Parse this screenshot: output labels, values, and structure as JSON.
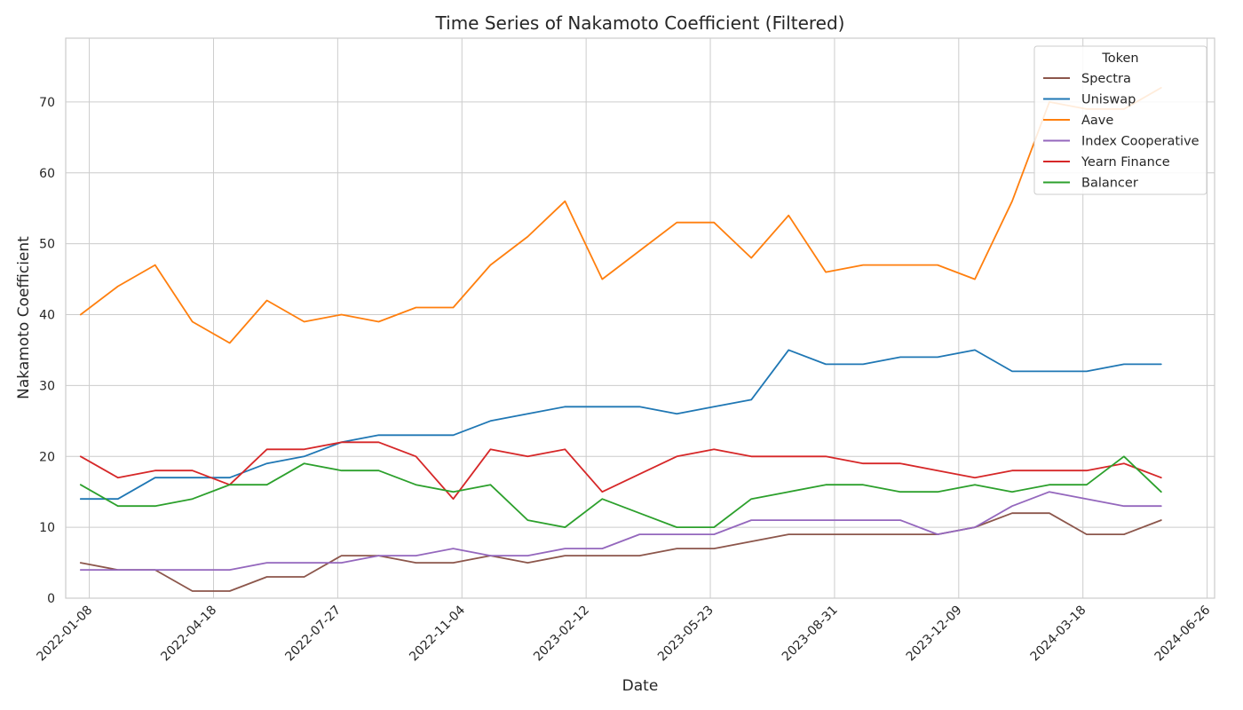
{
  "chart_data": {
    "type": "line",
    "title": "Time Series of Nakamoto Coefficient (Filtered)",
    "xlabel": "Date",
    "ylabel": "Nakamoto Coefficient",
    "ylim": [
      0,
      79
    ],
    "y_ticks": [
      0,
      10,
      20,
      30,
      40,
      50,
      60,
      70
    ],
    "x_ticks": [
      "2022-01-08",
      "2022-04-18",
      "2022-07-27",
      "2022-11-04",
      "2023-02-12",
      "2023-05-23",
      "2023-08-31",
      "2023-12-09",
      "2024-03-18",
      "2024-06-26"
    ],
    "xlim": [
      "2021-12-20",
      "2024-07-02"
    ],
    "grid": true,
    "legend": {
      "title": "Token",
      "placement": "top-right"
    },
    "x": [
      "2022-01-01",
      "2022-01-31",
      "2022-03-02",
      "2022-04-01",
      "2022-05-01",
      "2022-05-31",
      "2022-06-30",
      "2022-07-30",
      "2022-08-29",
      "2022-09-28",
      "2022-10-28",
      "2022-11-27",
      "2022-12-27",
      "2023-01-26",
      "2023-02-25",
      "2023-03-27",
      "2023-04-26",
      "2023-05-26",
      "2023-06-25",
      "2023-07-25",
      "2023-08-24",
      "2023-09-23",
      "2023-10-23",
      "2023-11-22",
      "2023-12-22",
      "2024-01-21",
      "2024-02-20",
      "2024-03-21",
      "2024-04-20",
      "2024-05-20"
    ],
    "series": [
      {
        "name": "Spectra",
        "color": "#8c564b",
        "values": [
          5,
          4,
          4,
          1,
          1,
          3,
          3,
          6,
          6,
          5,
          5,
          6,
          5,
          6,
          6,
          6,
          7,
          7,
          8,
          9,
          9,
          9,
          9,
          9,
          10,
          12,
          12,
          9,
          9,
          11
        ]
      },
      {
        "name": "Uniswap",
        "color": "#1f77b4",
        "values": [
          14,
          14,
          17,
          17,
          17,
          19,
          20,
          22,
          23,
          23,
          23,
          25,
          26,
          27,
          27,
          27,
          26,
          27,
          28,
          35,
          33,
          33,
          34,
          34,
          35,
          32,
          32,
          32,
          33,
          33
        ]
      },
      {
        "name": "Aave",
        "color": "#ff7f0e",
        "values": [
          40,
          44,
          47,
          39,
          36,
          42,
          39,
          40,
          39,
          41,
          41,
          47,
          51,
          56,
          45,
          49,
          53,
          53,
          48,
          54,
          46,
          47,
          47,
          47,
          45,
          56,
          70,
          69,
          69,
          72
        ]
      },
      {
        "name": "Index Cooperative",
        "color": "#9467bd",
        "values": [
          4,
          4,
          4,
          4,
          4,
          5,
          5,
          5,
          6,
          6,
          7,
          6,
          6,
          7,
          7,
          9,
          9,
          9,
          11,
          11,
          11,
          11,
          11,
          9,
          10,
          13,
          15,
          14,
          13,
          13
        ]
      },
      {
        "name": "Yearn Finance",
        "color": "#d62728",
        "values": [
          20,
          17,
          18,
          18,
          16,
          21,
          21,
          22,
          22,
          20,
          14,
          21,
          20,
          21,
          15,
          17.5,
          20,
          21,
          20,
          20,
          20,
          19,
          19,
          18,
          17,
          18,
          18,
          18,
          19,
          17
        ]
      },
      {
        "name": "Balancer",
        "color": "#2ca02c",
        "values": [
          16,
          13,
          13,
          14,
          16,
          16,
          19,
          18,
          18,
          16,
          15,
          16,
          11,
          10,
          14,
          12,
          10,
          10,
          14,
          15,
          16,
          16,
          15,
          15,
          16,
          15,
          16,
          16,
          20,
          15
        ]
      }
    ]
  }
}
